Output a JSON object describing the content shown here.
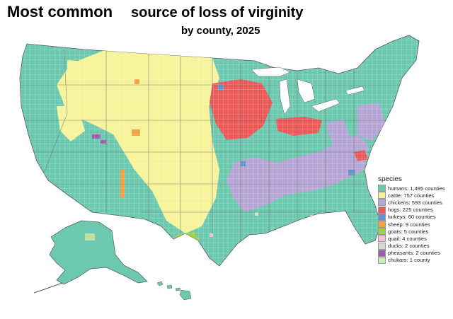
{
  "title": {
    "main": "Most common",
    "sub": "source of loss of virginity",
    "subtitle": "by county, 2025"
  },
  "legend": {
    "title": "species",
    "items": [
      {
        "key": "humans",
        "label": "humans: 1,495 counties",
        "color": "#6cc9b0"
      },
      {
        "key": "cattle",
        "label": "cattle: 757 counties",
        "color": "#f6f39a"
      },
      {
        "key": "chickens",
        "label": "chickens: 593 counties",
        "color": "#b6a6d6"
      },
      {
        "key": "hogs",
        "label": "hogs: 225 counties",
        "color": "#ec5a5a"
      },
      {
        "key": "turkeys",
        "label": "turkeys: 60 counties",
        "color": "#5f93c9"
      },
      {
        "key": "sheep",
        "label": "sheep: 9 counties",
        "color": "#f0a445"
      },
      {
        "key": "goats",
        "label": "goats: 5 counties",
        "color": "#9fd146"
      },
      {
        "key": "quail",
        "label": "quail: 4 counties",
        "color": "#f2c3dc"
      },
      {
        "key": "ducks",
        "label": "ducks: 2 counties",
        "color": "#d8d8d8"
      },
      {
        "key": "pheasants",
        "label": "pheasants: 2 counties",
        "color": "#a25ab0"
      },
      {
        "key": "chukars",
        "label": "chukars: 1 county",
        "color": "#cdebb8"
      }
    ]
  }
}
